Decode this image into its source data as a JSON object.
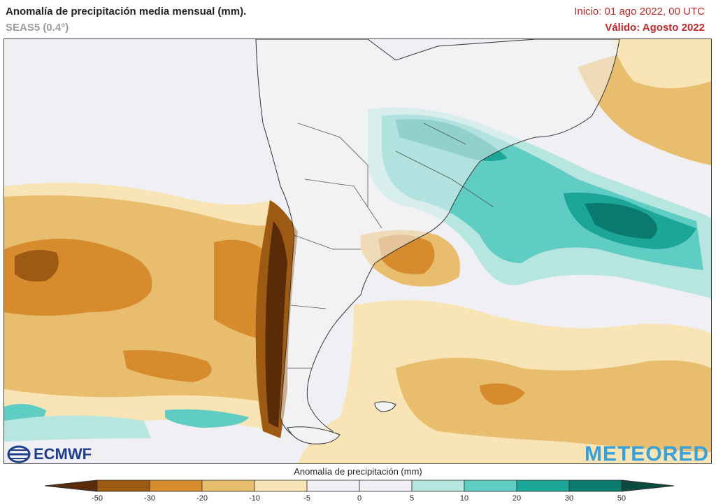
{
  "header": {
    "title": "Anomalía de precipitación media mensual (mm).",
    "subtitle": "SEAS5 (0.4°)",
    "init": "Inicio: 01 ago 2022, 00 UTC",
    "valid": "Válido: Agosto 2022"
  },
  "logos": {
    "left": "ECMWF",
    "right": "METEORED"
  },
  "legend": {
    "title": "Anomalía de precipitación (mm)",
    "ticks": [
      "-50",
      "-30",
      "-20",
      "-10",
      "-5",
      "0",
      "5",
      "10",
      "20",
      "30",
      "50"
    ],
    "colors": [
      "#5a2b08",
      "#9c5a12",
      "#d68b2c",
      "#e8bd6e",
      "#f8e4b4",
      "#efeff4",
      "#efeff4",
      "#b7e6e0",
      "#5fcdc4",
      "#1ca697",
      "#0a7a6f",
      "#0a4a3f"
    ]
  },
  "colors": {
    "title_red": "#c0282b",
    "meteored_blue": "#3aa0d8",
    "ecmwf_blue": "#1d3f8a"
  }
}
